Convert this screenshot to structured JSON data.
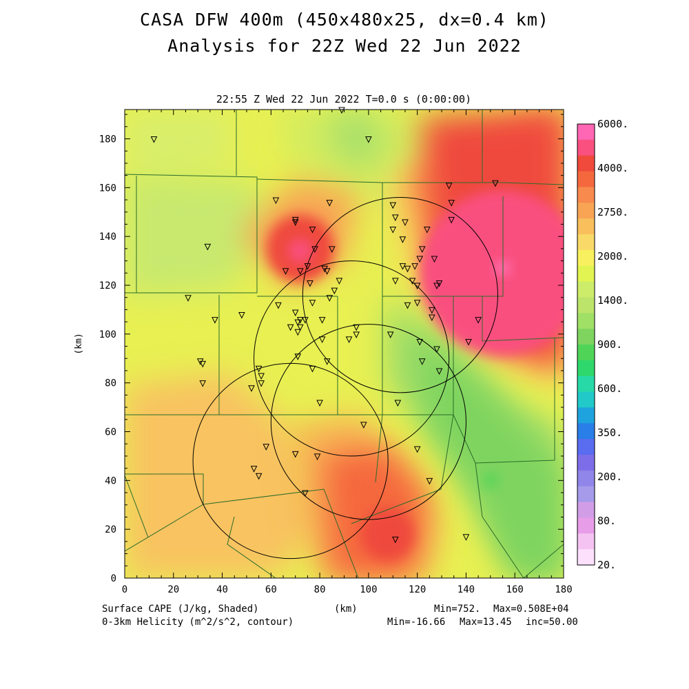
{
  "chart_data": {
    "type": "heatmap",
    "title": "CASA DFW 400m (450x480x25, dx=0.4 km)",
    "subtitle": "Analysis for 22Z Wed 22 Jun 2022",
    "time_label": "22:55 Z Wed 22 Jun 2022   T=0.0 s (0:00:00)",
    "xlabel": "(km)",
    "ylabel": "(km)",
    "xlim": [
      0,
      180
    ],
    "ylim": [
      0,
      192
    ],
    "xticks": [
      "0",
      "20",
      "40",
      "60",
      "80",
      "100",
      "120",
      "140",
      "160",
      "180"
    ],
    "yticks": [
      "0",
      "20",
      "40",
      "60",
      "80",
      "100",
      "120",
      "140",
      "160",
      "180"
    ],
    "colorbar_labels": [
      "6000.",
      "4000.",
      "2750.",
      "2000.",
      "1400.",
      "900.",
      "600.",
      "350.",
      "200.",
      "80.",
      "20."
    ],
    "colorbar_colors": [
      "#ff66b3",
      "#f9507f",
      "#ef4a3c",
      "#f5683e",
      "#f88a4d",
      "#f8a454",
      "#f8bf5c",
      "#f9d968",
      "#f8f05e",
      "#e2f451",
      "#cdec6a",
      "#bce46a",
      "#a0e066",
      "#7ed45e",
      "#50d457",
      "#2fd86c",
      "#28d9a8",
      "#22c9c9",
      "#1ea3de",
      "#2a7ee8",
      "#5a6cf0",
      "#7e6de8",
      "#9085e8",
      "#a59bea",
      "#d19de6",
      "#e89de8",
      "#f5c3f2",
      "#fde0fc"
    ],
    "series": [
      {
        "name": "Surface CAPE (J/kg, Shaded)",
        "min": "Min=752.",
        "max": "Max=0.508E+04"
      },
      {
        "name": "0-3km Helicity (m^2/s^2, contour)",
        "min": "Min=-16.66",
        "max": "Max=13.45",
        "inc": "inc=50.00"
      }
    ],
    "cape_blobs": [
      {
        "x": 155,
        "y": 125,
        "r": 34,
        "color": "#f9507f"
      },
      {
        "x": 72,
        "y": 135,
        "r": 14,
        "color": "#ef4a3c"
      },
      {
        "x": 72,
        "y": 134,
        "r": 5,
        "color": "#f9507f"
      },
      {
        "x": 108,
        "y": 18,
        "r": 11,
        "color": "#ef4a3c"
      },
      {
        "x": 150,
        "y": 40,
        "r": 3,
        "color": "#50d457"
      }
    ],
    "radar_circles": [
      {
        "x": 113,
        "y": 116,
        "r": 40
      },
      {
        "x": 93,
        "y": 90,
        "r": 40
      },
      {
        "x": 100,
        "y": 64,
        "r": 40
      },
      {
        "x": 68,
        "y": 48,
        "r": 40
      }
    ],
    "stations": [
      [
        12,
        180
      ],
      [
        89,
        192
      ],
      [
        100,
        180
      ],
      [
        133,
        161
      ],
      [
        134,
        154
      ],
      [
        152,
        162
      ],
      [
        62,
        155
      ],
      [
        84,
        154
      ],
      [
        70,
        147
      ],
      [
        70,
        146
      ],
      [
        77,
        143
      ],
      [
        110,
        153
      ],
      [
        111,
        148
      ],
      [
        115,
        146
      ],
      [
        110,
        143
      ],
      [
        114,
        139
      ],
      [
        124,
        143
      ],
      [
        122,
        135
      ],
      [
        121,
        131
      ],
      [
        127,
        131
      ],
      [
        134,
        147
      ],
      [
        34,
        136
      ],
      [
        66,
        126
      ],
      [
        72,
        126
      ],
      [
        75,
        128
      ],
      [
        82,
        127
      ],
      [
        78,
        135
      ],
      [
        85,
        135
      ],
      [
        83,
        126
      ],
      [
        76,
        121
      ],
      [
        86,
        118
      ],
      [
        88,
        122
      ],
      [
        84,
        115
      ],
      [
        114,
        128
      ],
      [
        116,
        127
      ],
      [
        119,
        128
      ],
      [
        118,
        122
      ],
      [
        120,
        120
      ],
      [
        111,
        122
      ],
      [
        128,
        120
      ],
      [
        129,
        121
      ],
      [
        26,
        115
      ],
      [
        63,
        112
      ],
      [
        70,
        109
      ],
      [
        68,
        103
      ],
      [
        71,
        105
      ],
      [
        72,
        103
      ],
      [
        71,
        101
      ],
      [
        72,
        106
      ],
      [
        74,
        106
      ],
      [
        77,
        113
      ],
      [
        81,
        106
      ],
      [
        37,
        106
      ],
      [
        48,
        108
      ],
      [
        116,
        112
      ],
      [
        120,
        113
      ],
      [
        126,
        110
      ],
      [
        126,
        107
      ],
      [
        145,
        106
      ],
      [
        141,
        97
      ],
      [
        95,
        103
      ],
      [
        95,
        100
      ],
      [
        92,
        98
      ],
      [
        81,
        98
      ],
      [
        71,
        91
      ],
      [
        77,
        86
      ],
      [
        83,
        89
      ],
      [
        31,
        89
      ],
      [
        32,
        88
      ],
      [
        55,
        86
      ],
      [
        56,
        83
      ],
      [
        56,
        80
      ],
      [
        52,
        78
      ],
      [
        109,
        100
      ],
      [
        121,
        97
      ],
      [
        122,
        89
      ],
      [
        128,
        94
      ],
      [
        129,
        85
      ],
      [
        32,
        80
      ],
      [
        80,
        72
      ],
      [
        112,
        72
      ],
      [
        98,
        63
      ],
      [
        120,
        53
      ],
      [
        58,
        54
      ],
      [
        70,
        51
      ],
      [
        79,
        50
      ],
      [
        53,
        45
      ],
      [
        55,
        42
      ],
      [
        74,
        35
      ],
      [
        125,
        40
      ],
      [
        111,
        16
      ],
      [
        140,
        17
      ]
    ]
  }
}
